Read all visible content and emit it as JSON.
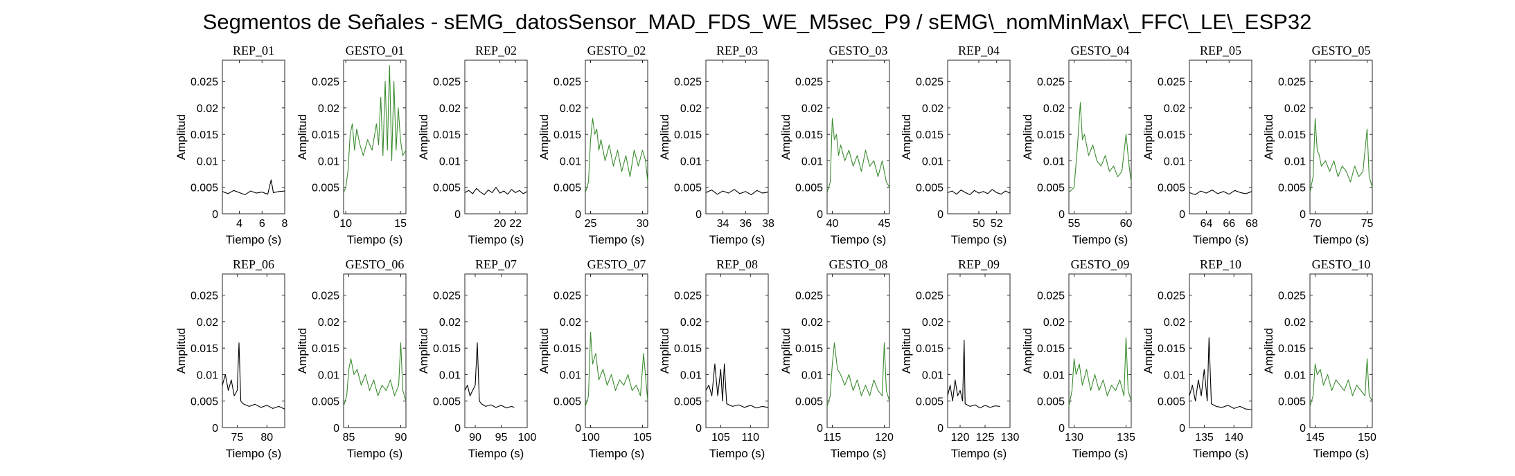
{
  "title": "Segmentos de Señales - sEMG_datosSensor_MAD_FDS_WE_M5sec_P9 / sEMG\\_nomMinMax\\_FFC\\_LE\\_ESP32",
  "colors": {
    "rep": "#000000",
    "gesto": "#3a8c2e"
  },
  "chart_data": [
    {
      "type": "line",
      "title": "REP_01",
      "kind": "rep",
      "xlabel": "Tiempo (s)",
      "ylabel": "Amplitud",
      "xlim": [
        2.5,
        8
      ],
      "ylim": [
        0,
        0.029
      ],
      "xticks": [
        4,
        6,
        8
      ],
      "yticks": [
        0,
        0.005,
        0.01,
        0.015,
        0.02,
        0.025
      ],
      "x": [
        2.5,
        3.0,
        3.5,
        4.0,
        4.5,
        5.0,
        5.5,
        6.0,
        6.5,
        6.8,
        7.0,
        7.5,
        8.0
      ],
      "y": [
        0.0042,
        0.0038,
        0.0044,
        0.004,
        0.0036,
        0.0043,
        0.0039,
        0.0041,
        0.0037,
        0.0064,
        0.004,
        0.0042,
        0.0043
      ]
    },
    {
      "type": "line",
      "title": "GESTO_01",
      "kind": "gesto",
      "xlabel": "Tiempo (s)",
      "ylabel": "Amplitud",
      "xlim": [
        9.8,
        15.5
      ],
      "ylim": [
        0,
        0.029
      ],
      "xticks": [
        10,
        15
      ],
      "yticks": [
        0,
        0.005,
        0.01,
        0.015,
        0.02,
        0.025
      ],
      "x": [
        9.8,
        10.0,
        10.2,
        10.4,
        10.6,
        10.8,
        11.0,
        11.3,
        11.6,
        12.0,
        12.4,
        12.8,
        13.0,
        13.2,
        13.4,
        13.6,
        13.8,
        14.0,
        14.2,
        14.4,
        14.6,
        14.8,
        15.0,
        15.2,
        15.5
      ],
      "y": [
        0.004,
        0.005,
        0.008,
        0.015,
        0.017,
        0.012,
        0.016,
        0.013,
        0.011,
        0.014,
        0.012,
        0.017,
        0.013,
        0.022,
        0.011,
        0.025,
        0.012,
        0.028,
        0.01,
        0.025,
        0.012,
        0.02,
        0.014,
        0.011,
        0.012
      ]
    },
    {
      "type": "line",
      "title": "REP_02",
      "kind": "rep",
      "xlabel": "Tiempo (s)",
      "ylabel": "Amplitud",
      "xlim": [
        15.5,
        23.5
      ],
      "ylim": [
        0,
        0.029
      ],
      "xticks": [
        20,
        22
      ],
      "yticks": [
        0,
        0.005,
        0.01,
        0.015,
        0.02,
        0.025
      ],
      "x": [
        15.5,
        16.0,
        16.5,
        17.0,
        17.5,
        18.0,
        18.5,
        19.0,
        19.5,
        20.0,
        20.5,
        21.0,
        21.5,
        22.0,
        22.5,
        23.0,
        23.5
      ],
      "y": [
        0.004,
        0.0044,
        0.0038,
        0.0048,
        0.0041,
        0.0036,
        0.0045,
        0.004,
        0.005,
        0.0039,
        0.0043,
        0.0037,
        0.0046,
        0.004,
        0.0044,
        0.0038,
        0.0042
      ]
    },
    {
      "type": "line",
      "title": "GESTO_02",
      "kind": "gesto",
      "xlabel": "Tiempo (s)",
      "ylabel": "Amplitud",
      "xlim": [
        24.5,
        30.5
      ],
      "ylim": [
        0,
        0.029
      ],
      "xticks": [
        25,
        30
      ],
      "yticks": [
        0,
        0.005,
        0.01,
        0.015,
        0.02,
        0.025
      ],
      "x": [
        24.5,
        24.8,
        25.0,
        25.2,
        25.4,
        25.6,
        25.8,
        26.0,
        26.4,
        26.8,
        27.2,
        27.6,
        28.0,
        28.4,
        28.8,
        29.2,
        29.6,
        30.0,
        30.3,
        30.5
      ],
      "y": [
        0.004,
        0.006,
        0.014,
        0.018,
        0.015,
        0.016,
        0.012,
        0.014,
        0.01,
        0.013,
        0.009,
        0.012,
        0.008,
        0.011,
        0.007,
        0.012,
        0.009,
        0.012,
        0.01,
        0.006
      ]
    },
    {
      "type": "line",
      "title": "REP_03",
      "kind": "rep",
      "xlabel": "Tiempo (s)",
      "ylabel": "Amplitud",
      "xlim": [
        32.5,
        38
      ],
      "ylim": [
        0,
        0.029
      ],
      "xticks": [
        34,
        36,
        38
      ],
      "yticks": [
        0,
        0.005,
        0.01,
        0.015,
        0.02,
        0.025
      ],
      "x": [
        32.5,
        33.0,
        33.5,
        34.0,
        34.5,
        35.0,
        35.5,
        36.0,
        36.5,
        37.0,
        37.5,
        38.0
      ],
      "y": [
        0.004,
        0.0045,
        0.0037,
        0.0043,
        0.0039,
        0.0046,
        0.0038,
        0.0042,
        0.0036,
        0.0044,
        0.0039,
        0.0041
      ]
    },
    {
      "type": "line",
      "title": "GESTO_03",
      "kind": "gesto",
      "xlabel": "Tiempo (s)",
      "ylabel": "Amplitud",
      "xlim": [
        39.5,
        45.5
      ],
      "ylim": [
        0,
        0.029
      ],
      "xticks": [
        40,
        45
      ],
      "yticks": [
        0,
        0.005,
        0.01,
        0.015,
        0.02,
        0.025
      ],
      "x": [
        39.5,
        39.8,
        40.0,
        40.2,
        40.4,
        40.6,
        40.8,
        41.2,
        41.6,
        42.0,
        42.4,
        42.8,
        43.2,
        43.6,
        44.0,
        44.4,
        44.8,
        45.2,
        45.5
      ],
      "y": [
        0.004,
        0.006,
        0.018,
        0.014,
        0.015,
        0.011,
        0.013,
        0.01,
        0.012,
        0.009,
        0.011,
        0.008,
        0.012,
        0.009,
        0.01,
        0.007,
        0.01,
        0.006,
        0.005
      ]
    },
    {
      "type": "line",
      "title": "REP_04",
      "kind": "rep",
      "xlabel": "Tiempo (s)",
      "ylabel": "Amplitud",
      "xlim": [
        46.5,
        53.5
      ],
      "ylim": [
        0,
        0.029
      ],
      "xticks": [
        50,
        52
      ],
      "yticks": [
        0,
        0.005,
        0.01,
        0.015,
        0.02,
        0.025
      ],
      "x": [
        46.5,
        47.0,
        47.5,
        48.0,
        48.5,
        49.0,
        49.5,
        50.0,
        50.5,
        51.0,
        51.5,
        52.0,
        52.5,
        53.0,
        53.5
      ],
      "y": [
        0.004,
        0.0043,
        0.0037,
        0.0045,
        0.004,
        0.0036,
        0.0044,
        0.0039,
        0.0042,
        0.0038,
        0.0046,
        0.004,
        0.0037,
        0.0043,
        0.0039
      ]
    },
    {
      "type": "line",
      "title": "GESTO_04",
      "kind": "gesto",
      "xlabel": "Tiempo (s)",
      "ylabel": "Amplitud",
      "xlim": [
        54.5,
        60.5
      ],
      "ylim": [
        0,
        0.029
      ],
      "xticks": [
        55,
        60
      ],
      "yticks": [
        0,
        0.005,
        0.01,
        0.015,
        0.02,
        0.025
      ],
      "x": [
        54.5,
        55.0,
        55.3,
        55.6,
        55.8,
        56.0,
        56.4,
        56.8,
        57.2,
        57.6,
        58.0,
        58.4,
        58.8,
        59.2,
        59.6,
        60.0,
        60.3,
        60.5
      ],
      "y": [
        0.004,
        0.005,
        0.012,
        0.021,
        0.014,
        0.015,
        0.011,
        0.013,
        0.01,
        0.009,
        0.011,
        0.008,
        0.009,
        0.007,
        0.008,
        0.015,
        0.009,
        0.006
      ]
    },
    {
      "type": "line",
      "title": "REP_05",
      "kind": "rep",
      "xlabel": "Tiempo (s)",
      "ylabel": "Amplitud",
      "xlim": [
        62.5,
        68
      ],
      "ylim": [
        0,
        0.029
      ],
      "xticks": [
        64,
        66,
        68
      ],
      "yticks": [
        0,
        0.005,
        0.01,
        0.015,
        0.02,
        0.025
      ],
      "x": [
        62.5,
        63.0,
        63.5,
        64.0,
        64.5,
        65.0,
        65.5,
        66.0,
        66.5,
        67.0,
        67.5,
        68.0
      ],
      "y": [
        0.004,
        0.0036,
        0.0043,
        0.0039,
        0.0045,
        0.0038,
        0.0042,
        0.0037,
        0.0044,
        0.004,
        0.0038,
        0.0042
      ]
    },
    {
      "type": "line",
      "title": "GESTO_05",
      "kind": "gesto",
      "xlabel": "Tiempo (s)",
      "ylabel": "Amplitud",
      "xlim": [
        69.5,
        75.5
      ],
      "ylim": [
        0,
        0.029
      ],
      "xticks": [
        70,
        75
      ],
      "yticks": [
        0,
        0.005,
        0.01,
        0.015,
        0.02,
        0.025
      ],
      "x": [
        69.5,
        69.8,
        70.0,
        70.2,
        70.4,
        70.6,
        71.0,
        71.4,
        71.8,
        72.2,
        72.6,
        73.0,
        73.4,
        73.8,
        74.2,
        74.6,
        75.0,
        75.2,
        75.5
      ],
      "y": [
        0.004,
        0.007,
        0.018,
        0.012,
        0.011,
        0.009,
        0.01,
        0.008,
        0.01,
        0.007,
        0.009,
        0.008,
        0.006,
        0.009,
        0.007,
        0.008,
        0.016,
        0.007,
        0.005
      ]
    },
    {
      "type": "line",
      "title": "REP_06",
      "kind": "rep",
      "xlabel": "Tiempo (s)",
      "ylabel": "Amplitud",
      "xlim": [
        72.5,
        83
      ],
      "ylim": [
        0,
        0.029
      ],
      "xticks": [
        75,
        80
      ],
      "yticks": [
        0,
        0.005,
        0.01,
        0.015,
        0.02,
        0.025
      ],
      "x": [
        72.5,
        73.0,
        73.5,
        74.0,
        74.5,
        75.0,
        75.3,
        75.6,
        76.0,
        77.0,
        78.0,
        79.0,
        80.0,
        81.0,
        82.0,
        83.0
      ],
      "y": [
        0.008,
        0.01,
        0.007,
        0.009,
        0.006,
        0.007,
        0.016,
        0.005,
        0.0045,
        0.004,
        0.0044,
        0.0038,
        0.0042,
        0.0036,
        0.004,
        0.0035
      ]
    },
    {
      "type": "line",
      "title": "GESTO_06",
      "kind": "gesto",
      "xlabel": "Tiempo (s)",
      "ylabel": "Amplitud",
      "xlim": [
        84.5,
        90.5
      ],
      "ylim": [
        0,
        0.029
      ],
      "xticks": [
        85,
        90
      ],
      "yticks": [
        0,
        0.005,
        0.01,
        0.015,
        0.02,
        0.025
      ],
      "x": [
        84.5,
        84.8,
        85.0,
        85.2,
        85.5,
        85.8,
        86.2,
        86.6,
        87.0,
        87.4,
        87.8,
        88.2,
        88.6,
        89.0,
        89.4,
        89.8,
        90.0,
        90.2,
        90.5
      ],
      "y": [
        0.004,
        0.006,
        0.011,
        0.013,
        0.01,
        0.011,
        0.008,
        0.01,
        0.007,
        0.009,
        0.006,
        0.008,
        0.007,
        0.009,
        0.006,
        0.008,
        0.016,
        0.007,
        0.005
      ]
    },
    {
      "type": "line",
      "title": "REP_07",
      "kind": "rep",
      "xlabel": "Tiempo (s)",
      "ylabel": "Amplitud",
      "xlim": [
        88,
        100
      ],
      "ylim": [
        0,
        0.029
      ],
      "xticks": [
        90,
        95,
        100
      ],
      "yticks": [
        0,
        0.005,
        0.01,
        0.015,
        0.02,
        0.025
      ],
      "x": [
        88.0,
        88.5,
        89.0,
        89.5,
        90.0,
        90.4,
        90.8,
        91.2,
        92.0,
        93.0,
        94.0,
        95.0,
        96.0,
        97.0,
        97.5
      ],
      "y": [
        0.007,
        0.008,
        0.006,
        0.007,
        0.008,
        0.016,
        0.005,
        0.0045,
        0.004,
        0.0043,
        0.0038,
        0.0042,
        0.0037,
        0.004,
        0.0038
      ]
    },
    {
      "type": "line",
      "title": "GESTO_07",
      "kind": "gesto",
      "xlabel": "Tiempo (s)",
      "ylabel": "Amplitud",
      "xlim": [
        99.5,
        105.5
      ],
      "ylim": [
        0,
        0.029
      ],
      "xticks": [
        100,
        105
      ],
      "yticks": [
        0,
        0.005,
        0.01,
        0.015,
        0.02,
        0.025
      ],
      "x": [
        99.5,
        99.8,
        100.0,
        100.2,
        100.5,
        100.8,
        101.2,
        101.6,
        102.0,
        102.4,
        102.8,
        103.2,
        103.6,
        104.0,
        104.4,
        104.8,
        105.1,
        105.5
      ],
      "y": [
        0.004,
        0.006,
        0.018,
        0.012,
        0.014,
        0.009,
        0.011,
        0.008,
        0.01,
        0.007,
        0.009,
        0.008,
        0.01,
        0.007,
        0.008,
        0.006,
        0.014,
        0.005
      ]
    },
    {
      "type": "line",
      "title": "REP_08",
      "kind": "rep",
      "xlabel": "Tiempo (s)",
      "ylabel": "Amplitud",
      "xlim": [
        102.5,
        113
      ],
      "ylim": [
        0,
        0.029
      ],
      "xticks": [
        105,
        110
      ],
      "yticks": [
        0,
        0.005,
        0.01,
        0.015,
        0.02,
        0.025
      ],
      "x": [
        102.5,
        103.0,
        103.5,
        104.0,
        104.5,
        105.0,
        105.3,
        105.6,
        106.0,
        107.0,
        108.0,
        109.0,
        110.0,
        111.0,
        112.0,
        113.0
      ],
      "y": [
        0.007,
        0.008,
        0.006,
        0.012,
        0.006,
        0.011,
        0.005,
        0.012,
        0.0045,
        0.004,
        0.0043,
        0.0038,
        0.0042,
        0.0037,
        0.004,
        0.0038
      ]
    },
    {
      "type": "line",
      "title": "GESTO_08",
      "kind": "gesto",
      "xlabel": "Tiempo (s)",
      "ylabel": "Amplitud",
      "xlim": [
        114.5,
        120.5
      ],
      "ylim": [
        0,
        0.029
      ],
      "xticks": [
        115,
        120
      ],
      "yticks": [
        0,
        0.005,
        0.01,
        0.015,
        0.02,
        0.025
      ],
      "x": [
        114.5,
        114.8,
        115.0,
        115.2,
        115.5,
        115.8,
        116.2,
        116.6,
        117.0,
        117.4,
        117.8,
        118.2,
        118.6,
        119.0,
        119.4,
        119.8,
        120.0,
        120.2,
        120.5
      ],
      "y": [
        0.004,
        0.006,
        0.012,
        0.016,
        0.011,
        0.01,
        0.008,
        0.01,
        0.007,
        0.009,
        0.006,
        0.008,
        0.006,
        0.009,
        0.007,
        0.006,
        0.016,
        0.007,
        0.005
      ]
    },
    {
      "type": "line",
      "title": "REP_09",
      "kind": "rep",
      "xlabel": "Tiempo (s)",
      "ylabel": "Amplitud",
      "xlim": [
        117.5,
        130
      ],
      "ylim": [
        0,
        0.029
      ],
      "xticks": [
        120,
        125,
        130
      ],
      "yticks": [
        0,
        0.005,
        0.01,
        0.015,
        0.02,
        0.025
      ],
      "x": [
        117.5,
        118.0,
        118.5,
        119.0,
        119.5,
        120.0,
        120.5,
        120.8,
        121.0,
        122.0,
        123.0,
        124.0,
        125.0,
        126.0,
        127.0,
        128.0
      ],
      "y": [
        0.006,
        0.008,
        0.005,
        0.009,
        0.006,
        0.007,
        0.005,
        0.0165,
        0.0045,
        0.004,
        0.0043,
        0.0037,
        0.0042,
        0.0038,
        0.0041,
        0.004
      ]
    },
    {
      "type": "line",
      "title": "GESTO_09",
      "kind": "gesto",
      "xlabel": "Tiempo (s)",
      "ylabel": "Amplitud",
      "xlim": [
        129.5,
        135.5
      ],
      "ylim": [
        0,
        0.029
      ],
      "xticks": [
        130,
        135
      ],
      "yticks": [
        0,
        0.005,
        0.01,
        0.015,
        0.02,
        0.025
      ],
      "x": [
        129.5,
        129.8,
        130.0,
        130.2,
        130.5,
        130.8,
        131.2,
        131.6,
        132.0,
        132.4,
        132.8,
        133.2,
        133.6,
        134.0,
        134.4,
        134.8,
        135.0,
        135.2,
        135.5
      ],
      "y": [
        0.004,
        0.007,
        0.013,
        0.01,
        0.012,
        0.008,
        0.011,
        0.007,
        0.01,
        0.007,
        0.009,
        0.006,
        0.008,
        0.007,
        0.009,
        0.006,
        0.017,
        0.007,
        0.005
      ]
    },
    {
      "type": "line",
      "title": "REP_10",
      "kind": "rep",
      "xlabel": "Tiempo (s)",
      "ylabel": "Amplitud",
      "xlim": [
        132.5,
        143
      ],
      "ylim": [
        0,
        0.029
      ],
      "xticks": [
        135,
        140
      ],
      "yticks": [
        0,
        0.005,
        0.01,
        0.015,
        0.02,
        0.025
      ],
      "x": [
        132.5,
        133.0,
        133.5,
        134.0,
        134.5,
        135.0,
        135.5,
        135.8,
        136.2,
        137.0,
        138.0,
        139.0,
        140.0,
        141.0,
        142.0,
        143.0
      ],
      "y": [
        0.006,
        0.008,
        0.005,
        0.009,
        0.006,
        0.011,
        0.005,
        0.017,
        0.0045,
        0.004,
        0.0038,
        0.0042,
        0.0036,
        0.004,
        0.0035,
        0.0034
      ]
    },
    {
      "type": "line",
      "title": "GESTO_10",
      "kind": "gesto",
      "xlabel": "Tiempo (s)",
      "ylabel": "Amplitud",
      "xlim": [
        144.5,
        150.5
      ],
      "ylim": [
        0,
        0.029
      ],
      "xticks": [
        145,
        150
      ],
      "yticks": [
        0,
        0.005,
        0.01,
        0.015,
        0.02,
        0.025
      ],
      "x": [
        144.5,
        144.8,
        145.0,
        145.2,
        145.5,
        145.8,
        146.2,
        146.6,
        147.0,
        147.4,
        147.8,
        148.2,
        148.6,
        149.0,
        149.4,
        149.8,
        150.0,
        150.2,
        150.5
      ],
      "y": [
        0.004,
        0.006,
        0.012,
        0.01,
        0.011,
        0.008,
        0.01,
        0.007,
        0.009,
        0.008,
        0.007,
        0.009,
        0.006,
        0.008,
        0.007,
        0.006,
        0.013,
        0.006,
        0.005
      ]
    }
  ]
}
